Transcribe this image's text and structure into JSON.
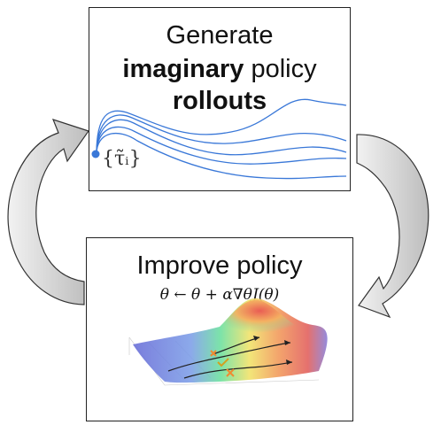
{
  "top_box": {
    "line1": "Generate",
    "line2_bold": "imaginary",
    "line2_rest": " policy",
    "line3_bold": "rollouts",
    "tau_label": "{τ̃ᵢ}"
  },
  "bottom_box": {
    "title": "Improve policy",
    "equation": "θ ← θ + α∇θJ(θ)"
  },
  "colors": {
    "trajectory": "#3a78d8",
    "arrow_fill": "#d6d6d6",
    "arrow_stroke": "#333333"
  }
}
